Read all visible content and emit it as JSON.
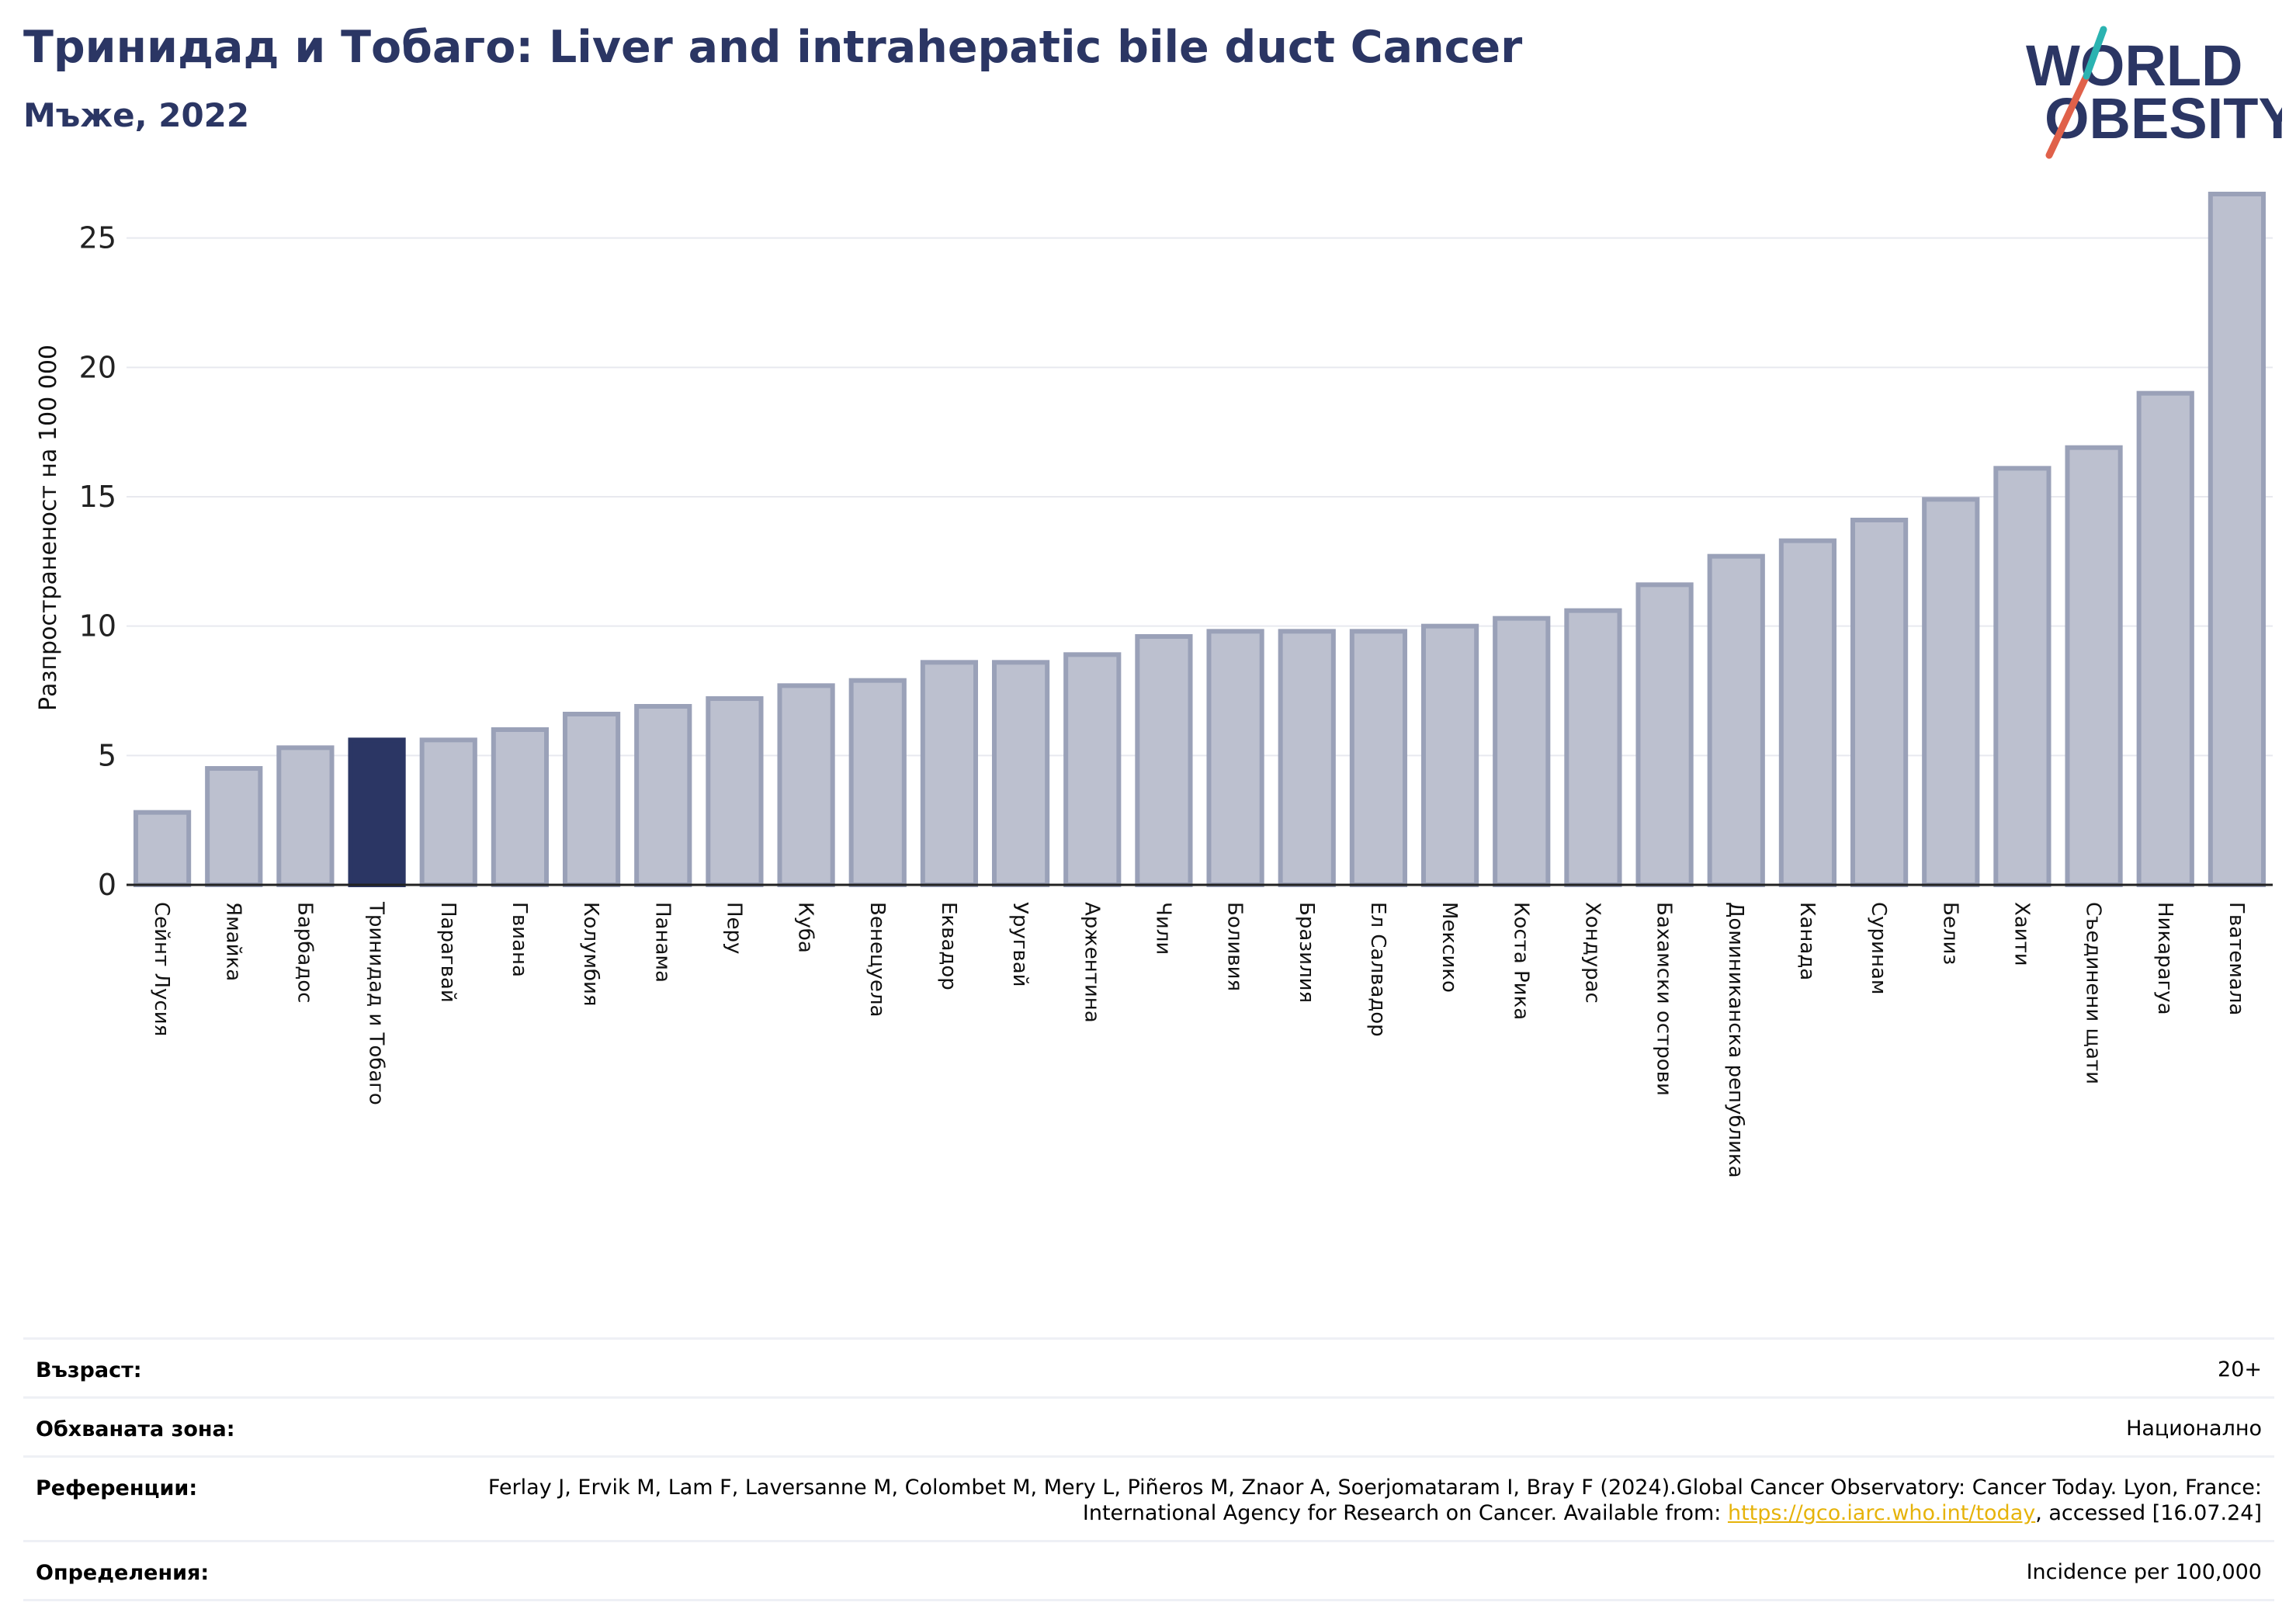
{
  "header": {
    "title": "Тринидад и Тобаго: Liver and intrahepatic bile duct Cancer",
    "subtitle": "Мъже, 2022"
  },
  "logo": {
    "line1": "WORLD",
    "line2": "OBESITY",
    "accent_teal": "#2bb3b1",
    "accent_red": "#e0614a",
    "text_color": "#2b3664"
  },
  "colors": {
    "bar": "#bcc0cf",
    "bar_edge": "#9aa1b8",
    "highlight": "#2b3664",
    "grid": "#e8e9ef",
    "axis": "#222222"
  },
  "chart_data": {
    "type": "bar",
    "ylabel": "Разпространеност  на 100 000",
    "ylim": [
      0,
      27
    ],
    "yticks": [
      0,
      5,
      10,
      15,
      20,
      25
    ],
    "highlight": "Тринидад и Тобаго",
    "categories": [
      "Сейнт Лусия",
      "Ямайка",
      "Барбадос",
      "Тринидад и Тобаго",
      "Парагвай",
      "Гвиана",
      "Колумбия",
      "Панама",
      "Перу",
      "Куба",
      "Венецуела",
      "Еквадор",
      "Уругвай",
      "Аржентина",
      "Чили",
      "Боливия",
      "Бразилия",
      "Ел Салвадор",
      "Мексико",
      "Коста Рика",
      "Хондурас",
      "Бахамски острови",
      "Доминиканска република",
      "Канада",
      "Суринам",
      "Белиз",
      "Хаити",
      "Съединени щати",
      "Никарагуа",
      "Гватемала"
    ],
    "values": [
      2.8,
      4.5,
      5.3,
      5.6,
      5.6,
      6.0,
      6.6,
      6.9,
      7.2,
      7.7,
      7.9,
      8.6,
      8.6,
      8.9,
      9.6,
      9.8,
      9.8,
      9.8,
      10.0,
      10.3,
      10.6,
      11.6,
      12.7,
      13.3,
      14.1,
      14.9,
      16.1,
      16.9,
      19.0,
      26.7
    ]
  },
  "info": [
    {
      "label": "Възраст:",
      "value": "20+"
    },
    {
      "label": "Обхваната зона:",
      "value": "Национално"
    },
    {
      "label": "Референции:",
      "value_pre": "Ferlay J, Ervik M, Lam F, Laversanne M, Colombet M, Mery L, Piñeros M, Znaor A, Soerjomataram I, Bray F (2024).Global Cancer Observatory: Cancer Today. Lyon, France: International Agency for Research on Cancer. Available from: ",
      "link": "https://gco.iarc.who.int/today",
      "value_post": ", accessed [16.07.24]"
    },
    {
      "label": "Определения:",
      "value": "Incidence per 100,000"
    }
  ]
}
